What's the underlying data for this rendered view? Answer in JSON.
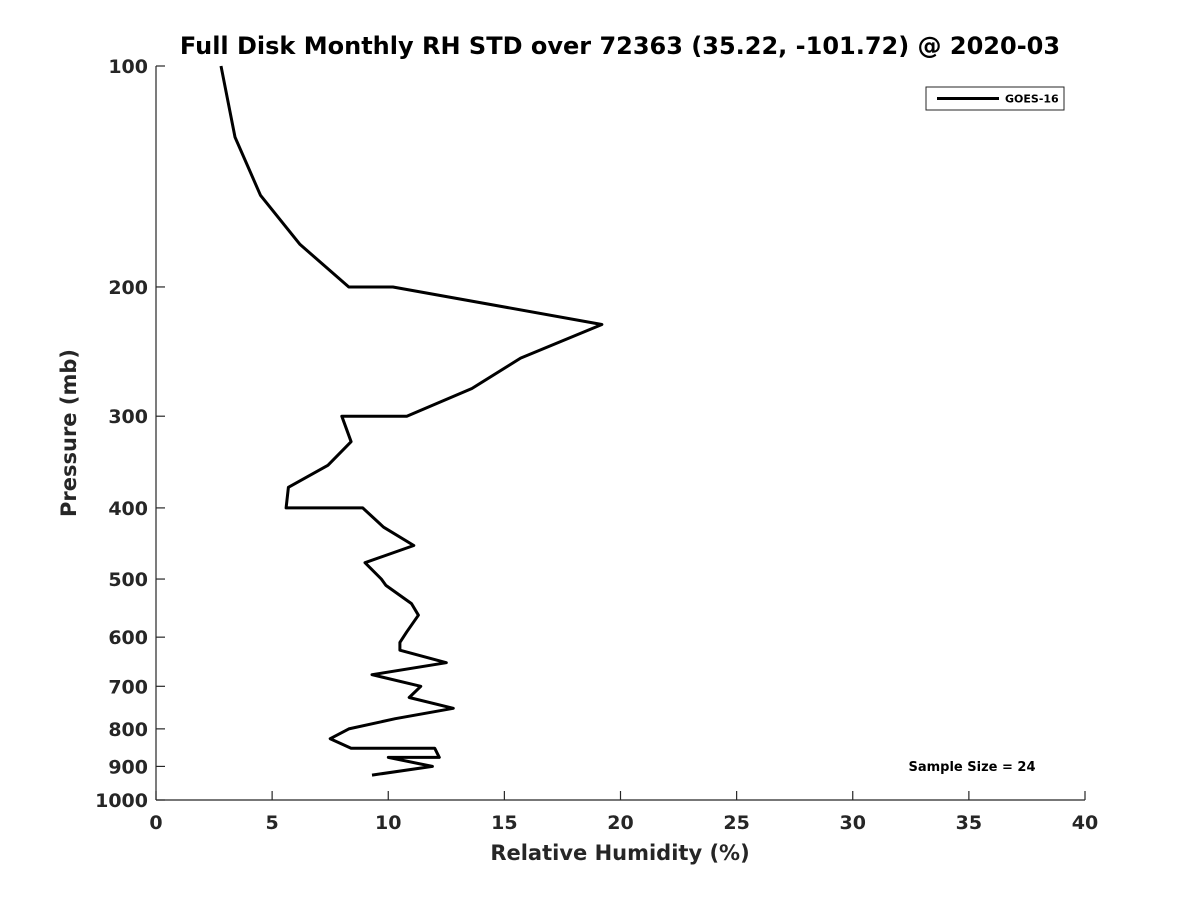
{
  "chart_data": {
    "type": "line",
    "title": "Full Disk Monthly RH STD over 72363 (35.22, -101.72) @ 2020-03",
    "xlabel": "Relative Humidity (%)",
    "ylabel": "Pressure (mb)",
    "xlim": [
      0,
      40
    ],
    "ylim": [
      100,
      1000
    ],
    "y_scale": "log",
    "y_reversed": true,
    "grid": false,
    "legend_position": "top-right",
    "x_ticks": [
      "0",
      "5",
      "10",
      "15",
      "20",
      "25",
      "30",
      "35",
      "40"
    ],
    "y_ticks": [
      "100",
      "200",
      "300",
      "400",
      "500",
      "600",
      "700",
      "800",
      "900",
      "1000"
    ],
    "series": [
      {
        "name": "GOES-16",
        "color": "#000000",
        "points": [
          {
            "x": 2.8,
            "y": 100
          },
          {
            "x": 3.4,
            "y": 125
          },
          {
            "x": 4.5,
            "y": 150
          },
          {
            "x": 6.2,
            "y": 175
          },
          {
            "x": 8.3,
            "y": 200
          },
          {
            "x": 10.2,
            "y": 200
          },
          {
            "x": 19.2,
            "y": 225
          },
          {
            "x": 15.7,
            "y": 250
          },
          {
            "x": 13.6,
            "y": 275
          },
          {
            "x": 10.8,
            "y": 300
          },
          {
            "x": 8.0,
            "y": 300
          },
          {
            "x": 8.4,
            "y": 325
          },
          {
            "x": 7.4,
            "y": 350
          },
          {
            "x": 5.7,
            "y": 375
          },
          {
            "x": 5.6,
            "y": 400
          },
          {
            "x": 8.9,
            "y": 400
          },
          {
            "x": 9.8,
            "y": 425
          },
          {
            "x": 11.1,
            "y": 450
          },
          {
            "x": 9.0,
            "y": 475
          },
          {
            "x": 9.7,
            "y": 500
          },
          {
            "x": 9.9,
            "y": 510
          },
          {
            "x": 11.0,
            "y": 540
          },
          {
            "x": 11.3,
            "y": 560
          },
          {
            "x": 10.8,
            "y": 590
          },
          {
            "x": 10.5,
            "y": 610
          },
          {
            "x": 10.5,
            "y": 625
          },
          {
            "x": 12.5,
            "y": 650
          },
          {
            "x": 9.3,
            "y": 675
          },
          {
            "x": 11.4,
            "y": 700
          },
          {
            "x": 10.9,
            "y": 725
          },
          {
            "x": 12.8,
            "y": 750
          },
          {
            "x": 10.3,
            "y": 775
          },
          {
            "x": 8.3,
            "y": 800
          },
          {
            "x": 7.5,
            "y": 825
          },
          {
            "x": 8.4,
            "y": 850
          },
          {
            "x": 12.0,
            "y": 850
          },
          {
            "x": 12.2,
            "y": 875
          },
          {
            "x": 10.0,
            "y": 875
          },
          {
            "x": 11.9,
            "y": 900
          },
          {
            "x": 9.3,
            "y": 925
          }
        ]
      }
    ],
    "annotations": [
      {
        "text": "Sample Size = 24",
        "position": "bottom-right"
      }
    ]
  }
}
